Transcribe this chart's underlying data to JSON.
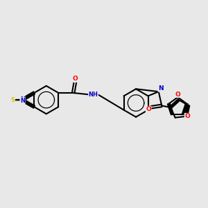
{
  "bg_color": "#e8e8e8",
  "line_color": "#000000",
  "bond_width": 1.5,
  "figsize": [
    3.0,
    3.0
  ],
  "dpi": 100,
  "atom_colors": {
    "N": "#0000cc",
    "S": "#cccc00",
    "O": "#ff0000",
    "C": "#000000"
  }
}
